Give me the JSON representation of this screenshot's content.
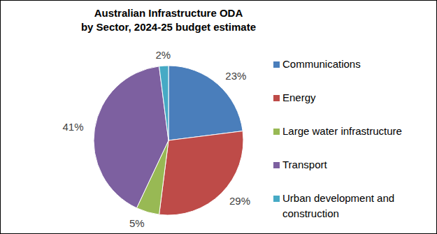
{
  "chart_data": {
    "type": "pie",
    "title": "Australian Infrastructure ODA\nby Sector, 2024-25 budget estimate",
    "categories": [
      "Communications",
      "Energy",
      "Large water infrastructure",
      "Transport",
      "Urban development and construction"
    ],
    "values": [
      23,
      29,
      5,
      41,
      2
    ],
    "value_labels": [
      "23%",
      "29%",
      "5%",
      "41%",
      "2%"
    ],
    "colors": [
      "#4a7ebb",
      "#be4b48",
      "#98b954",
      "#7d60a0",
      "#46aac5"
    ],
    "data_labels": true,
    "legend": "right"
  }
}
